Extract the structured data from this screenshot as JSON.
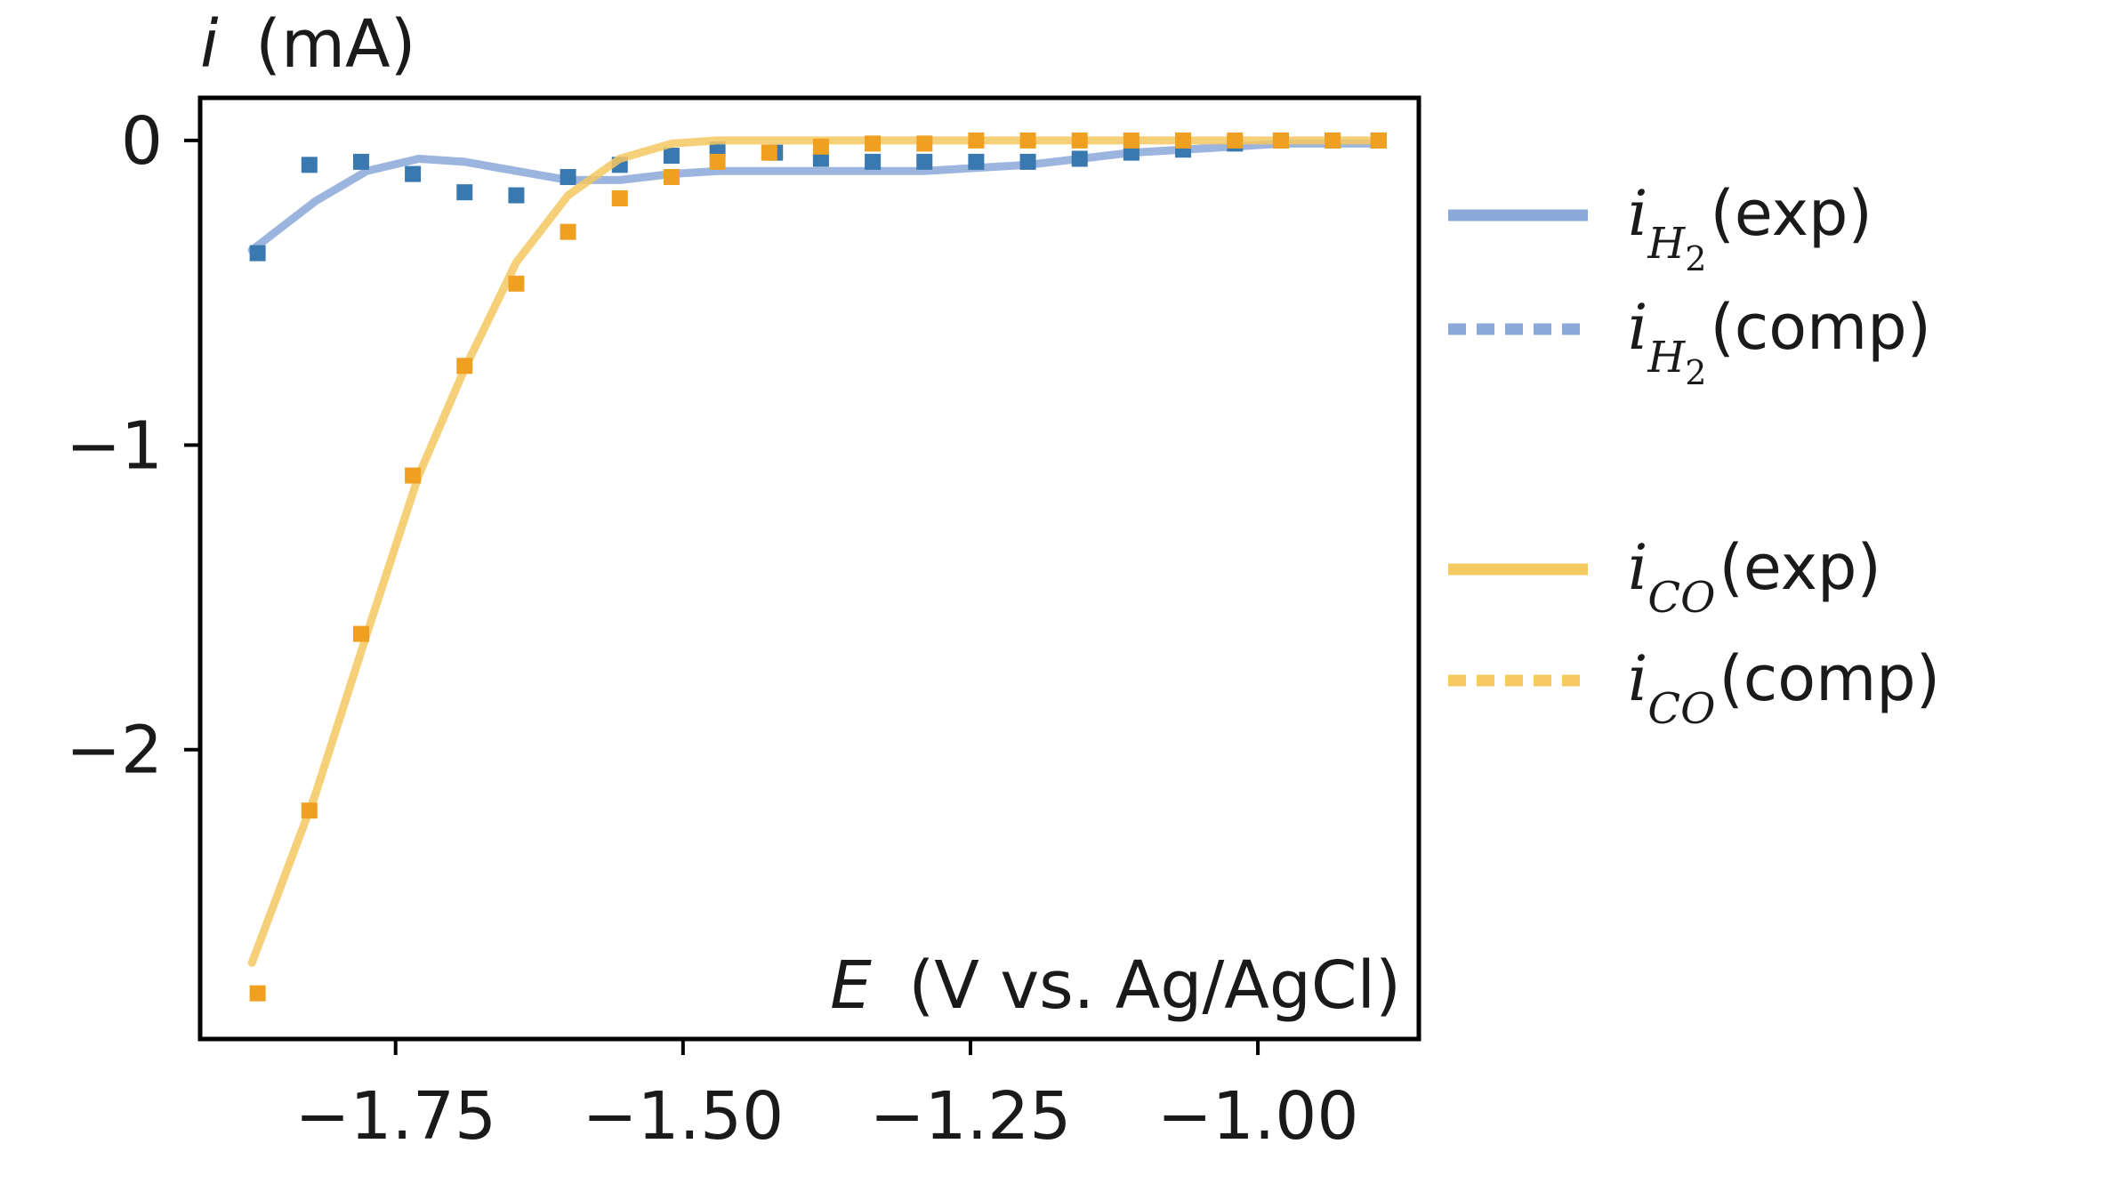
{
  "chart_data": {
    "type": "line",
    "ylabel_var": "i",
    "ylabel_unit": "(mA)",
    "xlabel_var": "E",
    "xlabel_unit": "(V vs. Ag/AgCl)",
    "xlim": [
      -1.92,
      -0.86
    ],
    "ylim": [
      -2.95,
      0.14
    ],
    "x_ticks": [
      -1.75,
      -1.5,
      -1.25,
      -1.0
    ],
    "x_tick_labels": [
      "−1.75",
      "−1.50",
      "−1.25",
      "−1.00"
    ],
    "y_ticks": [
      0,
      -1,
      -2
    ],
    "y_tick_labels": [
      "0",
      "−1",
      "−2"
    ],
    "grid": false,
    "legend_position": "right-outside",
    "colors": {
      "h2_line": "#8aa8d8",
      "h2_points": "#3a78b0",
      "co_line": "#f5c860",
      "co_points": "#f0a020",
      "axis": "#000000"
    },
    "series": [
      {
        "name_main": "i",
        "name_sub": "H",
        "name_sub2": "2",
        "name_suffix": "(exp)",
        "kind": "line",
        "color_key": "h2_line",
        "x": [
          -1.875,
          -1.82,
          -1.775,
          -1.73,
          -1.69,
          -1.645,
          -1.6,
          -1.555,
          -1.51,
          -1.47,
          -1.425,
          -1.38,
          -1.335,
          -1.29,
          -1.245,
          -1.2,
          -1.155,
          -1.11,
          -1.065,
          -1.02,
          -0.98,
          -0.935,
          -0.895
        ],
        "y": [
          -0.36,
          -0.2,
          -0.1,
          -0.06,
          -0.07,
          -0.1,
          -0.13,
          -0.13,
          -0.11,
          -0.1,
          -0.1,
          -0.1,
          -0.1,
          -0.1,
          -0.09,
          -0.08,
          -0.06,
          -0.04,
          -0.03,
          -0.02,
          -0.01,
          -0.01,
          -0.01
        ]
      },
      {
        "name_main": "i",
        "name_sub": "H",
        "name_sub2": "2",
        "name_suffix": "(comp)",
        "kind": "scatter",
        "color_key": "h2_points",
        "x": [
          -1.87,
          -1.825,
          -1.78,
          -1.735,
          -1.69,
          -1.645,
          -1.6,
          -1.555,
          -1.51,
          -1.47,
          -1.42,
          -1.38,
          -1.335,
          -1.29,
          -1.245,
          -1.2,
          -1.155,
          -1.11,
          -1.065,
          -1.02,
          -0.98,
          -0.935,
          -0.895
        ],
        "y": [
          -0.37,
          -0.08,
          -0.07,
          -0.11,
          -0.17,
          -0.18,
          -0.12,
          -0.08,
          -0.05,
          -0.03,
          -0.04,
          -0.06,
          -0.07,
          -0.07,
          -0.07,
          -0.07,
          -0.06,
          -0.04,
          -0.03,
          -0.01,
          0.0,
          0.0,
          0.0
        ]
      },
      {
        "name_main": "i",
        "name_sub": "CO",
        "name_sub2": "",
        "name_suffix": "(exp)",
        "kind": "line",
        "color_key": "co_line",
        "x": [
          -1.875,
          -1.82,
          -1.775,
          -1.73,
          -1.69,
          -1.645,
          -1.6,
          -1.555,
          -1.51,
          -1.47,
          -1.425,
          -1.38,
          -1.335,
          -1.29,
          -1.245,
          -1.2,
          -1.155,
          -1.11,
          -1.065,
          -1.02,
          -0.98,
          -0.935,
          -0.895
        ],
        "y": [
          -2.7,
          -2.15,
          -1.62,
          -1.1,
          -0.75,
          -0.4,
          -0.18,
          -0.06,
          -0.01,
          0.0,
          0.0,
          0.0,
          0.0,
          0.0,
          0.0,
          0.0,
          0.0,
          0.0,
          0.0,
          0.0,
          0.0,
          0.0,
          0.0
        ]
      },
      {
        "name_main": "i",
        "name_sub": "CO",
        "name_sub2": "",
        "name_suffix": "(comp)",
        "kind": "scatter",
        "color_key": "co_points",
        "x": [
          -1.87,
          -1.825,
          -1.78,
          -1.735,
          -1.69,
          -1.645,
          -1.6,
          -1.555,
          -1.51,
          -1.47,
          -1.425,
          -1.38,
          -1.335,
          -1.29,
          -1.245,
          -1.2,
          -1.155,
          -1.11,
          -1.065,
          -1.02,
          -0.98,
          -0.935,
          -0.895
        ],
        "y": [
          -2.8,
          -2.2,
          -1.62,
          -1.1,
          -0.74,
          -0.47,
          -0.3,
          -0.19,
          -0.12,
          -0.07,
          -0.04,
          -0.02,
          -0.01,
          -0.01,
          0.0,
          0.0,
          0.0,
          0.0,
          0.0,
          0.0,
          0.0,
          0.0,
          0.0
        ]
      }
    ]
  }
}
